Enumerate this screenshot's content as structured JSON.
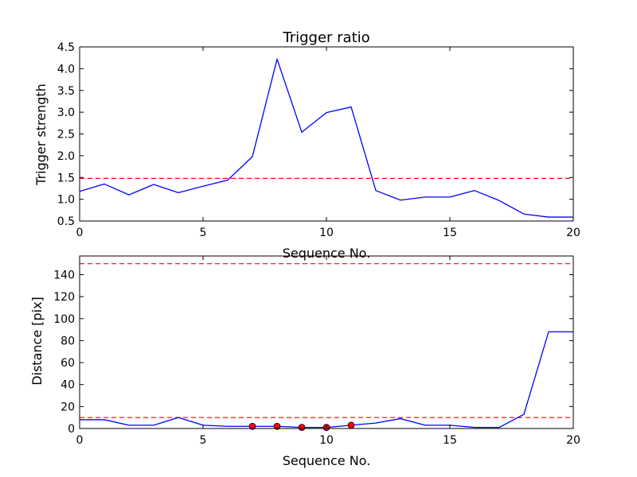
{
  "chart_data": [
    {
      "type": "line",
      "title": "Trigger ratio",
      "xlabel": "Sequence No.",
      "ylabel": "Trigger strength",
      "xlim": [
        0,
        20
      ],
      "ylim": [
        0.5,
        4.5
      ],
      "xticks": [
        0,
        5,
        10,
        15,
        20
      ],
      "xtick_labels": [
        "0",
        "5",
        "10",
        "15",
        "20"
      ],
      "yticks": [
        0.5,
        1.0,
        1.5,
        2.0,
        2.5,
        3.0,
        3.5,
        4.0,
        4.5
      ],
      "ytick_labels": [
        "0.5",
        "1.0",
        "1.5",
        "2.0",
        "2.5",
        "3.0",
        "3.5",
        "4.0",
        "4.5"
      ],
      "grid": false,
      "series": [
        {
          "color": "#0000ff",
          "style": "solid",
          "x": [
            0,
            1,
            2,
            3,
            4,
            5,
            6,
            7,
            8,
            9,
            10,
            11,
            12,
            13,
            14,
            15,
            16,
            17,
            18,
            19,
            20
          ],
          "y": [
            1.18,
            1.35,
            1.1,
            1.34,
            1.15,
            1.3,
            1.44,
            1.98,
            4.22,
            2.54,
            2.99,
            3.12,
            1.2,
            0.98,
            1.05,
            1.05,
            1.2,
            0.97,
            0.66,
            0.59,
            0.59
          ]
        }
      ],
      "hlines": [
        {
          "y": 1.48,
          "color": "#ff0000",
          "style": "dashed"
        }
      ]
    },
    {
      "type": "line",
      "title": "",
      "xlabel": "Sequence No.",
      "ylabel": "Distance [pix]",
      "xlim": [
        0,
        20
      ],
      "ylim": [
        0,
        157
      ],
      "xticks": [
        0,
        5,
        10,
        15,
        20
      ],
      "xtick_labels": [
        "0",
        "5",
        "10",
        "15",
        "20"
      ],
      "yticks": [
        0,
        20,
        40,
        60,
        80,
        100,
        120,
        140
      ],
      "ytick_labels": [
        "0",
        "20",
        "40",
        "60",
        "80",
        "100",
        "120",
        "140"
      ],
      "grid": false,
      "series": [
        {
          "color": "#0000ff",
          "style": "solid",
          "x": [
            0,
            1,
            2,
            3,
            4,
            5,
            6,
            7,
            8,
            9,
            10,
            11,
            12,
            13,
            14,
            15,
            16,
            17,
            18,
            19,
            20
          ],
          "y": [
            8,
            8,
            3,
            3,
            10,
            3,
            2,
            2,
            2,
            1,
            1,
            3,
            5,
            9,
            3,
            3,
            1,
            1,
            13,
            88,
            88
          ]
        }
      ],
      "points": [
        {
          "color": "#ff0000",
          "x": [
            7,
            8,
            9,
            10,
            11
          ],
          "y": [
            2,
            2,
            1,
            1,
            3
          ]
        }
      ],
      "hlines": [
        {
          "y": 150,
          "color": "#ff0000",
          "style": "dashed"
        },
        {
          "y": 10,
          "color": "#ff0000",
          "style": "dashed"
        }
      ]
    }
  ]
}
